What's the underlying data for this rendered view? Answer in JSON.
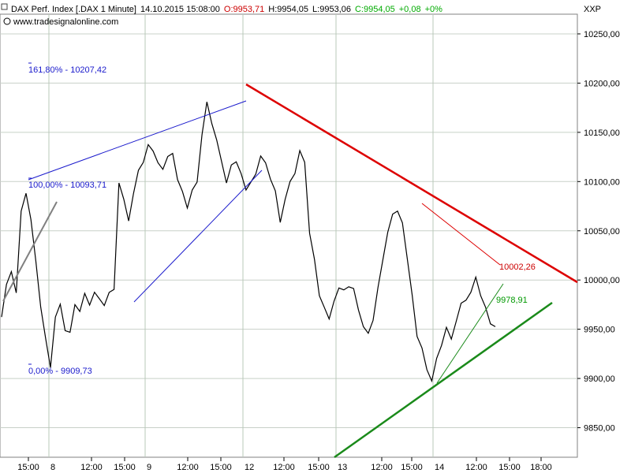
{
  "header": {
    "instrument": "DAX Perf. Index [.DAX  1 Minute]",
    "datetime": "14.10.2015 15:08:00",
    "open": "O:9953,71",
    "high": "H:9954,05",
    "low": "L:9953,06",
    "close": "C:9954,05",
    "change": "+0,08",
    "change_pct": "+0%",
    "watermark": "www.tradesignalonline.com",
    "axis_tag": "XXP",
    "open_color": "#cc0000",
    "change_color": "#00aa00"
  },
  "chart_data": {
    "type": "line",
    "title": "DAX Perf. Index [.DAX  1 Minute]",
    "ylim": [
      9820,
      10270
    ],
    "grid": true,
    "y_ticks": [
      9850,
      9900,
      9950,
      10000,
      10050,
      10100,
      10150,
      10200,
      10250
    ],
    "y_tick_labels": [
      "9850,00",
      "9900,00",
      "9950,00",
      "10000,00",
      "10050,00",
      "10100,00",
      "10150,00",
      "10200,00",
      "10250,00"
    ],
    "x_day_labels": [
      "8",
      "9",
      "12",
      "13",
      "14"
    ],
    "x_time_labels": [
      "15:00",
      "12:00",
      "15:00",
      "12:00",
      "15:00",
      "12:00",
      "15:00",
      "12:00",
      "15:00",
      "12:00",
      "15:00",
      "18:00"
    ],
    "series": [
      {
        "color": "#000000",
        "y": [
          9960,
          9995,
          10010,
          9985,
          10070,
          10090,
          10060,
          10020,
          9975,
          9940,
          9912,
          9960,
          9975,
          9950,
          9945,
          9975,
          9970,
          9985,
          9975,
          9990,
          9980,
          9975,
          9985,
          9990,
          10100,
          10080,
          10060,
          10090,
          10110,
          10120,
          10140,
          10130,
          10120,
          10110,
          10125,
          10130,
          10100,
          10090,
          10075,
          10090,
          10100,
          10150,
          10180,
          10160,
          10140,
          10120,
          10100,
          10115,
          10120,
          10110,
          10090,
          10100,
          10110,
          10125,
          10120,
          10100,
          10090,
          10060,
          10080,
          10100,
          10110,
          10130,
          10120,
          10050,
          10020,
          9985,
          9970,
          9960,
          9980,
          9990,
          9990,
          9995,
          9990,
          9970,
          9955,
          9945,
          9960,
          9990,
          10020,
          10050,
          10065,
          10070,
          10060,
          10020,
          9985,
          9945,
          9930,
          9910,
          9895,
          9920,
          9935,
          9950,
          9940,
          9960,
          9975,
          9980,
          9990,
          10002,
          9985,
          9970,
          9955,
          9954
        ]
      }
    ],
    "levels": [
      {
        "label": "161,80% - 10207,42",
        "value": 10207.42,
        "color": "#1a1acc"
      },
      {
        "label": "100,00% - 10093,71",
        "value": 10093.71,
        "color": "#1a1acc"
      },
      {
        "label": "0,00% - 9909,73",
        "value": 9909.73,
        "color": "#1a1acc"
      }
    ],
    "annotations": [
      {
        "label": "10002,26",
        "value": 10002.26,
        "color": "#cc0000"
      },
      {
        "label": "9978,91",
        "value": 9978.91,
        "color": "#009900"
      }
    ]
  }
}
